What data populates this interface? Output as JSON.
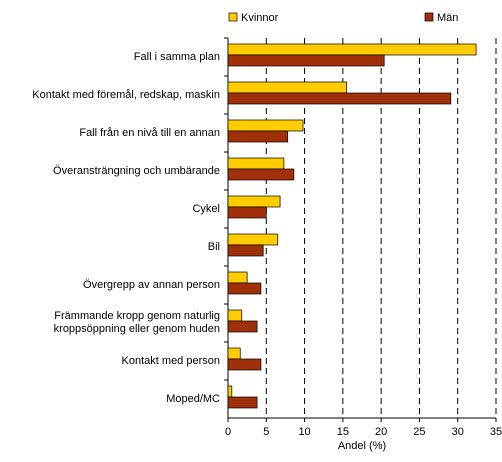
{
  "chart_data": {
    "type": "barh",
    "categories": [
      "Fall i samma plan",
      "Kontakt med föremål, redskap, maskin",
      "Fall från en nivå till en annan",
      "Överansträngning och umbärande",
      "Cykel",
      "Bil",
      "Övergrepp av annan person",
      "Främmande kropp genom naturlig kroppsöppning eller genom huden",
      "Kontakt med person",
      "Moped/MC"
    ],
    "series": [
      {
        "name": "Kvinnor",
        "color": "#ffcc00",
        "values": [
          32.4,
          15.5,
          9.8,
          7.3,
          6.8,
          6.5,
          2.5,
          1.8,
          1.6,
          0.5
        ]
      },
      {
        "name": "Män",
        "color": "#a0300a",
        "values": [
          20.4,
          29.1,
          7.8,
          8.6,
          5.0,
          4.6,
          4.3,
          3.8,
          4.3,
          3.8
        ]
      }
    ],
    "xlabel": "Andel (%)",
    "xlim": [
      0,
      35
    ],
    "xticks": [
      0,
      5,
      10,
      15,
      20,
      25,
      30,
      35
    ],
    "grid": true
  }
}
